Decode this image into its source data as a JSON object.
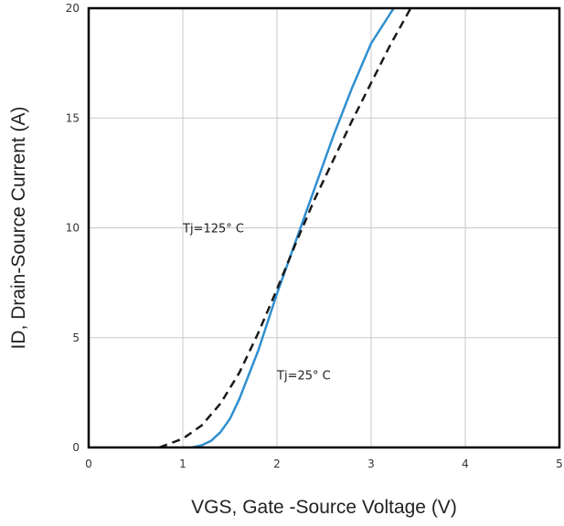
{
  "chart_data": {
    "type": "line",
    "xlabel": "VGS, Gate -Source Voltage (V)",
    "ylabel": "ID, Drain-Source Current (A)",
    "xlim": [
      0,
      5
    ],
    "ylim": [
      0,
      20
    ],
    "x_ticks": [
      "0",
      "1",
      "2",
      "3",
      "4",
      "5"
    ],
    "y_ticks": [
      "0",
      "5",
      "10",
      "15",
      "20"
    ],
    "grid": true,
    "series": [
      {
        "name": "Tj=25° C",
        "color": "#2f8fd0",
        "style": "solid",
        "points": [
          [
            1.1,
            0
          ],
          [
            1.2,
            0.1
          ],
          [
            1.3,
            0.3
          ],
          [
            1.4,
            0.7
          ],
          [
            1.5,
            1.3
          ],
          [
            1.6,
            2.2
          ],
          [
            1.7,
            3.3
          ],
          [
            1.8,
            4.4
          ],
          [
            1.9,
            5.7
          ],
          [
            2.0,
            7.0
          ],
          [
            2.2,
            9.4
          ],
          [
            2.4,
            11.8
          ],
          [
            2.6,
            14.2
          ],
          [
            2.8,
            16.4
          ],
          [
            3.0,
            18.4
          ],
          [
            3.24,
            20.0
          ]
        ]
      },
      {
        "name": "Tj=125° C",
        "color": "#1a1a1a",
        "style": "dashed",
        "points": [
          [
            0.75,
            0
          ],
          [
            1.0,
            0.4
          ],
          [
            1.2,
            1.0
          ],
          [
            1.4,
            2.0
          ],
          [
            1.6,
            3.4
          ],
          [
            1.8,
            5.2
          ],
          [
            2.0,
            7.2
          ],
          [
            2.2,
            9.3
          ],
          [
            2.4,
            11.3
          ],
          [
            2.6,
            13.1
          ],
          [
            2.8,
            14.9
          ],
          [
            3.0,
            16.6
          ],
          [
            3.2,
            18.3
          ],
          [
            3.42,
            20.0
          ]
        ]
      }
    ],
    "annotations": [
      {
        "text": "Tj=125° C",
        "x": 1.0,
        "y": 9.8
      },
      {
        "text": "Tj=25° C",
        "x": 2.0,
        "y": 3.1
      }
    ]
  }
}
